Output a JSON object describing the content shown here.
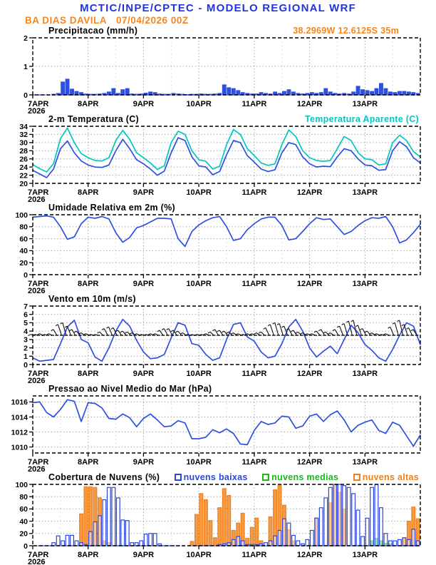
{
  "header": {
    "title": "MCTIC/INPE/CPTEC - MODELO REGIONAL WRF",
    "station": "BA DIAS DAVILA",
    "run": "07/04/2026 00Z",
    "coords": "38.2969W 12.6125S 35m",
    "title_color": "#2233dd",
    "accent_orange": "#f5861f"
  },
  "x_axis": {
    "labels": [
      "7APR",
      "8APR",
      "9APR",
      "10APR",
      "11APR",
      "12APR",
      "13APR"
    ],
    "year_label": "2026",
    "days": 7
  },
  "chart_data": [
    {
      "id": "precipitacao",
      "title": "Precipitacao (mm/h)",
      "type": "bar",
      "ylim": [
        0,
        2
      ],
      "yticks": [
        0,
        1,
        2
      ],
      "zero_line": "#2f4fe0",
      "series": [
        {
          "name": "Precipitacao",
          "kind": "bar",
          "step_h": 2,
          "fill": "#2f4fe0",
          "stroke": "#2f4fe0",
          "values": [
            0,
            0,
            0,
            0,
            0.02,
            0.05,
            0.45,
            0.55,
            0.2,
            0.12,
            0.08,
            0.03,
            0.02,
            0.02,
            0.03,
            0.05,
            0.1,
            0.22,
            0.05,
            0.18,
            0.22,
            0.03,
            0.02,
            0.03,
            0.06,
            0.1,
            0.08,
            0.03,
            0.02,
            0.02,
            0.05,
            0.03,
            0.02,
            0.01,
            0.02,
            0.02,
            0.03,
            0.02,
            0.02,
            0.03,
            0.05,
            0.35,
            0.25,
            0.22,
            0.15,
            0.08,
            0.05,
            0.03,
            0.03,
            0.08,
            0.05,
            0.03,
            0.1,
            0.05,
            0.12,
            0.18,
            0.1,
            0.05,
            0.03,
            0.05,
            0.08,
            0.05,
            0.08,
            0.22,
            0.1,
            0.05,
            0.03,
            0.05,
            0.03,
            0.1,
            0.3,
            0.18,
            0.15,
            0.12,
            0.22,
            0.4,
            0.22,
            0.1,
            0.08,
            0.12,
            0.12,
            0.1,
            0.08,
            0.05
          ]
        }
      ]
    },
    {
      "id": "temperatura",
      "title": "2-m Temperatura (C)",
      "right_label": "Temperatura Aparente (C)",
      "type": "line",
      "ylim": [
        20,
        34
      ],
      "yticks": [
        20,
        22,
        24,
        26,
        28,
        30,
        32,
        34
      ],
      "series": [
        {
          "name": "2-m Temperatura",
          "kind": "line",
          "step_h": 3,
          "color": "#2f4fe0",
          "values": [
            23.2,
            22.3,
            21.4,
            23.5,
            28.5,
            30.4,
            27.5,
            25.5,
            24.5,
            24.0,
            23.9,
            24.5,
            28.0,
            30.8,
            28.5,
            25.8,
            24.8,
            23.5,
            22.0,
            23.0,
            27.5,
            31.2,
            30.5,
            26.5,
            24.3,
            24.0,
            22.1,
            22.9,
            27.0,
            30.5,
            30.0,
            26.8,
            25.2,
            23.5,
            22.9,
            23.3,
            27.5,
            30.0,
            29.5,
            26.5,
            24.8,
            24.0,
            24.2,
            24.1,
            26.5,
            28.5,
            28.0,
            26.0,
            24.5,
            24.3,
            23.2,
            23.4,
            28.0,
            30.2,
            29.0,
            26.3,
            25.0
          ]
        },
        {
          "name": "Temperatura Aparente",
          "kind": "line",
          "step_h": 3,
          "color": "#00c8c0",
          "values": [
            24.6,
            23.6,
            22.8,
            24.8,
            31.0,
            33.6,
            30.0,
            27.3,
            26.3,
            25.6,
            25.5,
            26.3,
            30.5,
            33.0,
            30.8,
            27.5,
            26.3,
            25.0,
            23.4,
            24.3,
            30.0,
            32.8,
            32.0,
            28.0,
            25.8,
            25.4,
            23.5,
            24.2,
            29.5,
            33.2,
            32.0,
            28.5,
            26.8,
            25.0,
            24.4,
            24.8,
            29.5,
            33.1,
            31.5,
            28.0,
            26.3,
            25.6,
            25.4,
            25.6,
            28.5,
            31.5,
            30.5,
            27.5,
            26.0,
            25.8,
            24.5,
            24.8,
            30.0,
            31.8,
            30.5,
            27.8,
            26.5
          ]
        }
      ]
    },
    {
      "id": "umidade",
      "title": "Umidade Relativa em 2m (%)",
      "type": "line",
      "ylim": [
        0,
        100
      ],
      "yticks": [
        0,
        20,
        40,
        60,
        80,
        100
      ],
      "series": [
        {
          "name": "Umidade Relativa",
          "kind": "line",
          "step_h": 3,
          "color": "#2f4fe0",
          "values": [
            96,
            97,
            98,
            96,
            80,
            59,
            63,
            85,
            96,
            94,
            97,
            93,
            70,
            54,
            62,
            78,
            82,
            88,
            94,
            94,
            93,
            60,
            47,
            72,
            83,
            90,
            95,
            97,
            80,
            57,
            60,
            75,
            85,
            93,
            96,
            96,
            82,
            58,
            60,
            72,
            85,
            95,
            92,
            93,
            80,
            67,
            72,
            82,
            90,
            95,
            94,
            97,
            80,
            53,
            58,
            70,
            84
          ]
        }
      ]
    },
    {
      "id": "vento",
      "title": "Vento em 10m (m/s)",
      "type": "line+barbs",
      "ylim": [
        0,
        7
      ],
      "yticks": [
        0,
        1,
        2,
        3,
        4,
        5,
        6,
        7
      ],
      "series": [
        {
          "name": "Barbelas de Vento",
          "kind": "barbs",
          "step_h": 2,
          "base": 3.5,
          "color": "#111111",
          "values": [
            3.6,
            3.6,
            3.7,
            3.6,
            3.7,
            4.2,
            4.8,
            5.0,
            4.6,
            4.2,
            4.0,
            3.8,
            3.7,
            3.6,
            3.6,
            3.9,
            4.3,
            4.5,
            4.4,
            4.1,
            4.0,
            3.9,
            3.8,
            3.7,
            3.6,
            3.6,
            3.7,
            3.7,
            4.1,
            4.3,
            4.3,
            4.1,
            4.0,
            3.8,
            3.6,
            3.6,
            3.6,
            3.6,
            3.7,
            3.9,
            4.2,
            4.1,
            4.0,
            3.9,
            3.8,
            3.7,
            3.6,
            3.7,
            3.7,
            3.8,
            3.9,
            4.4,
            4.8,
            5.0,
            4.9,
            4.6,
            4.3,
            4.1,
            3.9,
            3.8,
            3.7,
            3.7,
            4.0,
            4.2,
            3.9,
            3.8,
            4.2,
            4.6,
            4.9,
            5.2,
            5.3,
            4.7,
            4.3,
            4.0,
            3.8,
            3.7,
            3.6,
            3.7,
            4.5,
            5.0,
            5.3,
            4.8,
            4.4,
            4.2
          ]
        },
        {
          "name": "Velocidade do Vento",
          "kind": "line",
          "step_h": 3,
          "color": "#2f4fe0",
          "values": [
            0.8,
            0.4,
            0.5,
            0.6,
            2.5,
            4.5,
            5.3,
            3.0,
            2.6,
            0.9,
            0.4,
            2.0,
            4.0,
            5.4,
            4.6,
            2.9,
            1.5,
            0.7,
            0.8,
            1.2,
            3.2,
            5.0,
            4.7,
            2.5,
            2.3,
            1.2,
            0.5,
            0.8,
            3.0,
            4.8,
            5.0,
            3.3,
            2.8,
            1.5,
            0.8,
            1.0,
            2.5,
            4.5,
            5.4,
            4.0,
            2.0,
            0.9,
            1.6,
            2.2,
            1.3,
            3.0,
            4.7,
            3.8,
            2.4,
            1.7,
            0.8,
            0.4,
            1.8,
            3.5,
            5.0,
            4.6,
            2.4
          ]
        }
      ]
    },
    {
      "id": "pressao",
      "title": "Pressao ao Nivel Medio do Mar (hPa)",
      "type": "line",
      "ylim": [
        1009.2,
        1016.8
      ],
      "yticks": [
        1010,
        1012,
        1014,
        1016
      ],
      "series": [
        {
          "name": "Pressao ao Nivel do Mar",
          "kind": "line",
          "step_h": 3,
          "color": "#2f4fe0",
          "values": [
            1015.9,
            1016.0,
            1014.6,
            1014.0,
            1015.0,
            1016.3,
            1016.1,
            1013.4,
            1015.9,
            1015.8,
            1015.2,
            1013.8,
            1013.7,
            1014.4,
            1013.9,
            1012.7,
            1013.8,
            1014.4,
            1013.6,
            1012.7,
            1012.8,
            1013.5,
            1013.2,
            1011.1,
            1011.1,
            1011.3,
            1012.3,
            1011.9,
            1012.4,
            1011.8,
            1010.4,
            1010.3,
            1012.2,
            1013.4,
            1013.0,
            1013.2,
            1014.1,
            1014.0,
            1012.5,
            1012.8,
            1014.1,
            1014.4,
            1013.4,
            1014.3,
            1014.8,
            1013.6,
            1012.0,
            1012.9,
            1013.3,
            1013.6,
            1012.2,
            1011.8,
            1013.3,
            1012.9,
            1011.5,
            1010.1,
            1011.6
          ]
        }
      ]
    },
    {
      "id": "nuvens",
      "title": "Cobertura de Nuvens (%)",
      "type": "bar",
      "ylim": [
        0,
        100
      ],
      "yticks": [
        0,
        20,
        40,
        60,
        80,
        100
      ],
      "zero_line": "#2b46e0",
      "series": [
        {
          "name": "nuvens baixas",
          "kind": "bar",
          "step_h": 2,
          "fill": "#ffffff",
          "fill_opacity": 0.45,
          "stroke": "#2b46e0",
          "values": [
            0,
            0,
            0,
            0,
            5,
            16,
            8,
            17,
            17,
            8,
            5,
            2,
            23,
            39,
            49,
            75,
            95,
            95,
            78,
            42,
            41,
            5,
            5,
            8,
            19,
            20,
            20,
            3,
            0,
            0,
            0,
            0,
            0,
            0,
            0,
            0,
            0,
            0,
            0,
            0,
            2,
            3,
            5,
            10,
            15,
            8,
            2,
            2,
            2,
            3,
            5,
            8,
            16,
            25,
            44,
            37,
            17,
            8,
            3,
            10,
            25,
            45,
            62,
            78,
            95,
            100,
            100,
            98,
            95,
            85,
            58,
            15,
            45,
            95,
            100,
            62,
            20,
            8,
            8,
            10,
            13,
            10,
            27,
            8
          ]
        },
        {
          "name": "nuvens medias",
          "kind": "bar",
          "step_h": 2,
          "fill": "#3fd03f",
          "stroke": "#18b818",
          "values": [
            0,
            0,
            0,
            0,
            0,
            0,
            0,
            0,
            0,
            0,
            0,
            0,
            0,
            0,
            0,
            0,
            0,
            0,
            0,
            0,
            0,
            0,
            0,
            0,
            0,
            0,
            0,
            0,
            0,
            0,
            0,
            0,
            0,
            0,
            0,
            0,
            0,
            0,
            0,
            0,
            0,
            0,
            0,
            0,
            0,
            0,
            0,
            0,
            0,
            0,
            0,
            0,
            0,
            0,
            0,
            0,
            0,
            0,
            0,
            0,
            0,
            0,
            0,
            0,
            0,
            0,
            0,
            0,
            0,
            0,
            0,
            0,
            0,
            8,
            12,
            8,
            4,
            3,
            0,
            0,
            0,
            0,
            0,
            0
          ]
        },
        {
          "name": "nuvens altas",
          "kind": "bar",
          "step_h": 2,
          "fill": "#f59a45",
          "stroke": "#ef7f1d",
          "values": [
            0,
            0,
            0,
            0,
            0,
            0,
            0,
            0,
            0,
            0,
            52,
            96,
            96,
            95,
            78,
            8,
            5,
            0,
            0,
            0,
            0,
            0,
            0,
            0,
            0,
            0,
            0,
            0,
            0,
            0,
            0,
            0,
            0,
            0,
            7,
            51,
            85,
            75,
            41,
            13,
            62,
            93,
            82,
            25,
            37,
            53,
            12,
            30,
            45,
            8,
            0,
            47,
            91,
            98,
            66,
            26,
            8,
            0,
            0,
            0,
            0,
            45,
            0,
            0,
            70,
            100,
            87,
            60,
            0,
            0,
            0,
            0,
            0,
            0,
            0,
            0,
            0,
            0,
            0,
            0,
            12,
            40,
            63,
            44
          ]
        }
      ]
    }
  ]
}
